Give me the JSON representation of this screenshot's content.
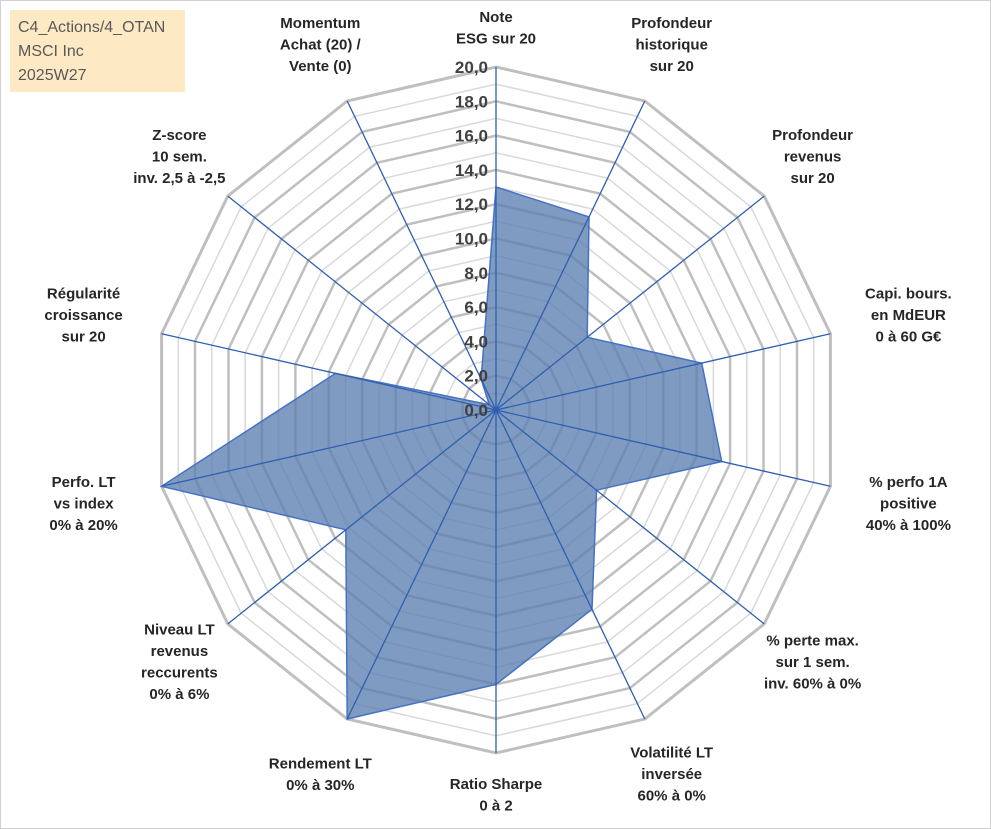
{
  "header": {
    "line1": "C4_Actions/4_OTAN",
    "line2": "MSCI Inc",
    "line3": "2025W27"
  },
  "colors": {
    "fill": "#5b7fb0",
    "fill_opacity": 0.78,
    "series_line": "#4472c4",
    "spoke": "#2f5fb0",
    "grid_major": "#bfbfbf",
    "grid_minor": "#d9d9d9",
    "info_box_bg": "#fde9c4"
  },
  "chart_data": {
    "type": "radar",
    "ylim": [
      0,
      20
    ],
    "grid": true,
    "tick_labels": [
      "0,0",
      "2,0",
      "4,0",
      "6,0",
      "8,0",
      "10,0",
      "12,0",
      "14,0",
      "16,0",
      "18,0",
      "20,0"
    ],
    "axes": [
      {
        "label": [
          "Note",
          "ESG sur 20"
        ],
        "value": 13.0,
        "anchor": "middle"
      },
      {
        "label": [
          "Profondeur",
          "historique",
          "sur 20"
        ],
        "value": 12.5,
        "anchor": "middle"
      },
      {
        "label": [
          "Profondeur",
          "revenus",
          "sur 20"
        ],
        "value": 6.8,
        "anchor": "middle"
      },
      {
        "label": [
          "Capi. bours.",
          "en MdEUR",
          "0 à 60 G€"
        ],
        "value": 12.3,
        "anchor": "middle"
      },
      {
        "label": [
          "% perfo 1A",
          "positive",
          "40% à 100%"
        ],
        "value": 13.5,
        "anchor": "middle"
      },
      {
        "label": [
          "% perte max.",
          "sur 1 sem.",
          "inv. 60% à 0%"
        ],
        "value": 7.5,
        "anchor": "middle"
      },
      {
        "label": [
          "Volatilité LT",
          "inversée",
          "60% à 0%"
        ],
        "value": 12.9,
        "anchor": "middle"
      },
      {
        "label": [
          "Ratio Sharpe",
          "0 à 2"
        ],
        "value": 16.0,
        "anchor": "middle"
      },
      {
        "label": [
          "Rendement LT",
          "0% à 30%"
        ],
        "value": 20.0,
        "anchor": "middle"
      },
      {
        "label": [
          "Niveau LT",
          "revenus",
          "reccurents",
          "0% à 6%"
        ],
        "value": 11.2,
        "anchor": "middle"
      },
      {
        "label": [
          "Perfo. LT",
          "vs index",
          "0% à 20%"
        ],
        "value": 20.0,
        "anchor": "middle"
      },
      {
        "label": [
          "Régularité",
          "croissance",
          "sur 20"
        ],
        "value": 9.6,
        "anchor": "middle"
      },
      {
        "label": [
          "Z-score",
          "10 sem.",
          "inv. 2,5 à -2,5"
        ],
        "value": 0.5,
        "anchor": "middle"
      },
      {
        "label": [
          "Momentum",
          "Achat (20) /",
          "Vente (0)"
        ],
        "value": 2.0,
        "anchor": "middle"
      }
    ]
  }
}
